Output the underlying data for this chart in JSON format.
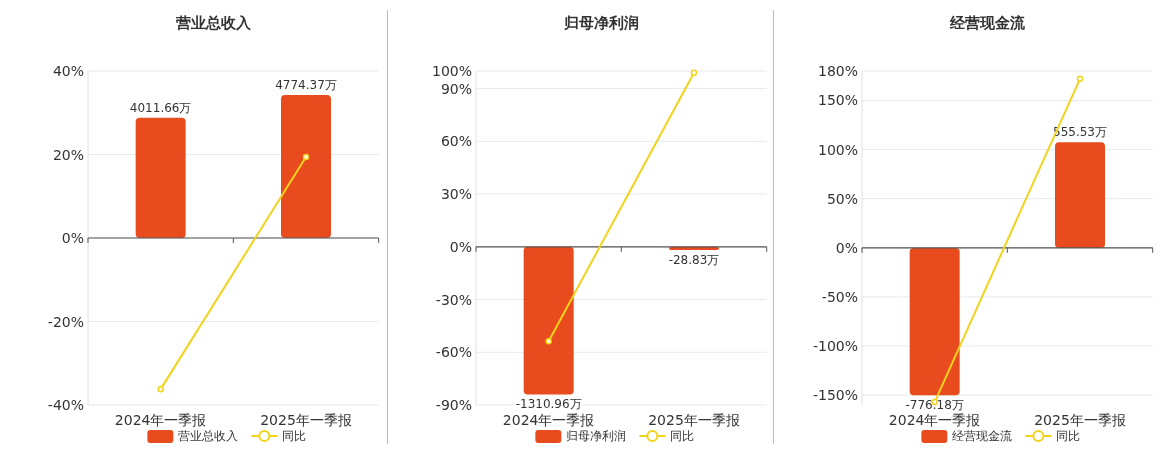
{
  "chart_data": [
    {
      "type": "bar",
      "title": "营业总收入",
      "categories": [
        "2024年一季报",
        "2025年一季报"
      ],
      "series": [
        {
          "name": "营业总收入",
          "type": "bar",
          "axis": "y2",
          "color": "#e84c1e",
          "values": [
            4011.66,
            4774.37
          ],
          "value_labels": [
            "4011.66万",
            "4774.37万"
          ]
        },
        {
          "name": "同比",
          "type": "line",
          "color": "#f2d31b",
          "values": [
            -36.2,
            19.4
          ]
        }
      ],
      "ylim": [
        -40,
        40
      ],
      "yticks": [
        {
          "value": 40,
          "label": "40%"
        },
        {
          "value": 20,
          "label": "20%"
        },
        {
          "value": 0,
          "label": "0%"
        },
        {
          "value": -20,
          "label": "-20%"
        },
        {
          "value": -40,
          "label": "-40%"
        }
      ],
      "y2lim": [
        -5576,
        5576
      ],
      "grid": "y",
      "legend": "bottom",
      "marker": "circle"
    },
    {
      "type": "bar",
      "title": "归母净利润",
      "categories": [
        "2024年一季报",
        "2025年一季报"
      ],
      "series": [
        {
          "name": "归母净利润",
          "type": "bar",
          "axis": "y2",
          "color": "#e84c1e",
          "values": [
            -1310.96,
            -28.83
          ],
          "value_labels": [
            "-1310.96万",
            "-28.83万"
          ]
        },
        {
          "name": "同比",
          "type": "line",
          "color": "#f2d31b",
          "values": [
            -53.7,
            99
          ]
        }
      ],
      "ylim": [
        -90,
        100
      ],
      "yticks": [
        {
          "value": 100,
          "label": "100%"
        },
        {
          "value": 90,
          "label": "90%"
        },
        {
          "value": 60,
          "label": "60%"
        },
        {
          "value": 30,
          "label": "30%"
        },
        {
          "value": 0,
          "label": "0%"
        },
        {
          "value": -30,
          "label": "-30%"
        },
        {
          "value": -60,
          "label": "-60%"
        },
        {
          "value": -90,
          "label": "-90%"
        }
      ],
      "y2lim": [
        -1405,
        1561
      ],
      "grid": "y",
      "legend": "bottom",
      "marker": "circle"
    },
    {
      "type": "bar",
      "title": "经营现金流",
      "categories": [
        "2024年一季报",
        "2025年一季报"
      ],
      "series": [
        {
          "name": "经营现金流",
          "type": "bar",
          "axis": "y2",
          "color": "#e84c1e",
          "values": [
            -776.18,
            555.53
          ],
          "value_labels": [
            "-776.18万",
            "555.53万"
          ]
        },
        {
          "name": "同比",
          "type": "line",
          "color": "#f2d31b",
          "values": [
            -157,
            172
          ]
        }
      ],
      "ylim": [
        -160,
        180
      ],
      "yticks": [
        {
          "value": 180,
          "label": "180%"
        },
        {
          "value": 150,
          "label": "150%"
        },
        {
          "value": 100,
          "label": "100%"
        },
        {
          "value": 50,
          "label": "50%"
        },
        {
          "value": 0,
          "label": "0%"
        },
        {
          "value": -50,
          "label": "-50%"
        },
        {
          "value": -100,
          "label": "-100%"
        },
        {
          "value": -150,
          "label": "-150%"
        }
      ],
      "y2lim": [
        -827,
        931
      ],
      "grid": "y",
      "legend": "bottom",
      "marker": "circle"
    }
  ]
}
